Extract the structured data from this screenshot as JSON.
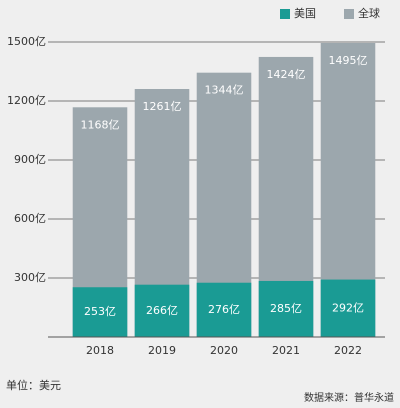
{
  "chart_data": {
    "type": "bar",
    "overlap": true,
    "categories": [
      "2018",
      "2019",
      "2020",
      "2021",
      "2022"
    ],
    "series": [
      {
        "name": "全球",
        "color": "#9ca7ad",
        "values": [
          1168,
          1261,
          1344,
          1424,
          1495
        ],
        "value_labels": [
          "1168亿",
          "1261亿",
          "1344亿",
          "1424亿",
          "1495亿"
        ]
      },
      {
        "name": "美国",
        "color": "#1a9b94",
        "values": [
          253,
          266,
          276,
          285,
          292
        ],
        "value_labels": [
          "253亿",
          "266亿",
          "276亿",
          "285亿",
          "292亿"
        ]
      }
    ],
    "ylim": [
      0,
      1500
    ],
    "yticks": [
      {
        "value": 300,
        "label": "300亿"
      },
      {
        "value": 600,
        "label": "600亿"
      },
      {
        "value": 900,
        "label": "900亿"
      },
      {
        "value": 1200,
        "label": "1200亿"
      },
      {
        "value": 1500,
        "label": "1500亿"
      }
    ],
    "grid": true,
    "legend": "top-right",
    "note": "单位：美元",
    "source": "数据来源：普华永道"
  }
}
